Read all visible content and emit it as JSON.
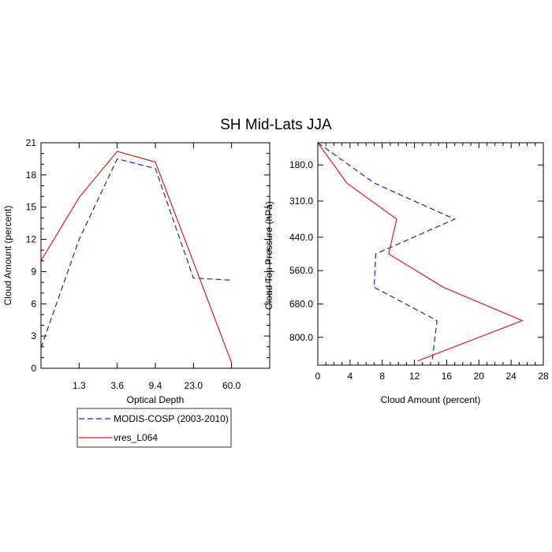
{
  "title": "SH Mid-Lats JJA",
  "chart_data": [
    {
      "type": "line",
      "xlabel": "Optical Depth",
      "ylabel": "Cloud Amount (percent)",
      "x_ticks": [
        "1.3",
        "3.6",
        "9.4",
        "23.0",
        "60.0"
      ],
      "x_bins": [
        0.5,
        1.5,
        2.5,
        3.5,
        4.5,
        5.5,
        6.5
      ],
      "xlim": [
        0.5,
        6.5
      ],
      "y_ticks": [
        "0",
        "3",
        "6",
        "9",
        "12",
        "15",
        "18",
        "21"
      ],
      "ylim": [
        0,
        21
      ],
      "series": [
        {
          "name": "MODIS-COSP (2003-2010)",
          "color": "#1f1fcc",
          "dash": "dashed",
          "values": [
            1.9,
            12.0,
            19.5,
            18.6,
            8.4,
            8.2
          ]
        },
        {
          "name": "vres_L064",
          "color": "#e31a1c",
          "dash": "solid",
          "values": [
            10.0,
            15.9,
            20.2,
            19.2,
            9.9,
            0.5
          ]
        }
      ]
    },
    {
      "type": "line",
      "xlabel": "Cloud Amount (percent)",
      "ylabel": "Cloud Top Pressure (hPa)",
      "x_ticks": [
        "0",
        "4",
        "8",
        "12",
        "16",
        "20",
        "24",
        "28"
      ],
      "xlim": [
        0,
        28
      ],
      "y_ticks": [
        "180.0",
        "310.0",
        "440.0",
        "560.0",
        "680.0",
        "800.0"
      ],
      "ylim": [
        100,
        900
      ],
      "series": [
        {
          "name": "MODIS-COSP (2003-2010)",
          "color": "#1f1fcc",
          "dash": "dashed",
          "pressure": [
            100,
            245,
            375,
            500,
            620,
            740,
            885
          ],
          "values": [
            0.0,
            7.0,
            17.0,
            7.2,
            7.0,
            14.8,
            14.2
          ]
        },
        {
          "name": "vres_L064",
          "color": "#e31a1c",
          "dash": "solid",
          "pressure": [
            100,
            245,
            375,
            500,
            620,
            740,
            885
          ],
          "values": [
            0.0,
            3.6,
            9.8,
            8.8,
            15.6,
            25.4,
            12.4
          ]
        }
      ]
    }
  ],
  "legend": {
    "items": [
      {
        "label": "MODIS-COSP (2003-2010)",
        "color": "#1f1fcc",
        "dash": "dashed"
      },
      {
        "label": "vres_L064",
        "color": "#e31a1c",
        "dash": "solid"
      }
    ]
  }
}
